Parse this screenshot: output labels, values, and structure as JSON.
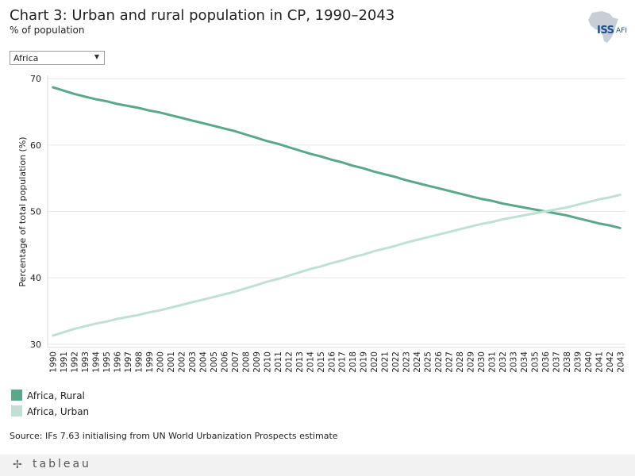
{
  "header": {
    "title": "Chart 3: Urban and rural population in CP, 1990–2043",
    "subtitle": "% of population",
    "logo_text": "ISS",
    "logo_sub": "AFI"
  },
  "filter": {
    "selected": "Africa"
  },
  "chart_data": {
    "type": "line",
    "title": "Chart 3: Urban and rural population in CP, 1990–2043",
    "subtitle": "% of population",
    "xlabel": "",
    "ylabel": "Percentage of total population (%)",
    "ylim": [
      29.5,
      70.5
    ],
    "yticks": [
      30,
      40,
      50,
      60,
      70
    ],
    "grid": true,
    "legend_position": "bottom-left",
    "x": [
      1990,
      1991,
      1992,
      1993,
      1994,
      1995,
      1996,
      1997,
      1998,
      1999,
      2000,
      2001,
      2002,
      2003,
      2004,
      2005,
      2006,
      2007,
      2008,
      2009,
      2010,
      2011,
      2012,
      2013,
      2014,
      2015,
      2016,
      2017,
      2018,
      2019,
      2020,
      2021,
      2022,
      2023,
      2024,
      2025,
      2026,
      2027,
      2028,
      2029,
      2030,
      2031,
      2032,
      2033,
      2034,
      2035,
      2036,
      2037,
      2038,
      2039,
      2040,
      2041,
      2042,
      2043
    ],
    "series": [
      {
        "name": "Africa, Rural",
        "color": "#59a88a",
        "values": [
          68.7,
          68.2,
          67.7,
          67.3,
          66.9,
          66.6,
          66.2,
          65.9,
          65.6,
          65.2,
          64.9,
          64.5,
          64.1,
          63.7,
          63.3,
          62.9,
          62.5,
          62.1,
          61.6,
          61.1,
          60.6,
          60.2,
          59.7,
          59.2,
          58.7,
          58.3,
          57.8,
          57.4,
          56.9,
          56.5,
          56.0,
          55.6,
          55.2,
          54.7,
          54.3,
          53.9,
          53.5,
          53.1,
          52.7,
          52.3,
          51.9,
          51.6,
          51.2,
          50.9,
          50.6,
          50.3,
          50.0,
          49.7,
          49.4,
          49.0,
          48.6,
          48.2,
          47.9,
          47.5
        ]
      },
      {
        "name": "Africa, Urban",
        "color": "#bfe0d2",
        "values": [
          31.3,
          31.8,
          32.3,
          32.7,
          33.1,
          33.4,
          33.8,
          34.1,
          34.4,
          34.8,
          35.1,
          35.5,
          35.9,
          36.3,
          36.7,
          37.1,
          37.5,
          37.9,
          38.4,
          38.9,
          39.4,
          39.8,
          40.3,
          40.8,
          41.3,
          41.7,
          42.2,
          42.6,
          43.1,
          43.5,
          44.0,
          44.4,
          44.8,
          45.3,
          45.7,
          46.1,
          46.5,
          46.9,
          47.3,
          47.7,
          48.1,
          48.4,
          48.8,
          49.1,
          49.4,
          49.7,
          50.0,
          50.3,
          50.6,
          51.0,
          51.4,
          51.8,
          52.1,
          52.5
        ]
      }
    ]
  },
  "legend": {
    "items": [
      {
        "label": "Africa, Rural",
        "color": "#59a88a"
      },
      {
        "label": "Africa, Urban",
        "color": "#bfe0d2"
      }
    ]
  },
  "source": "Source: IFs 7.63 initialising from UN World Urbanization Prospects estimate",
  "footer": {
    "brand": "tableau"
  }
}
